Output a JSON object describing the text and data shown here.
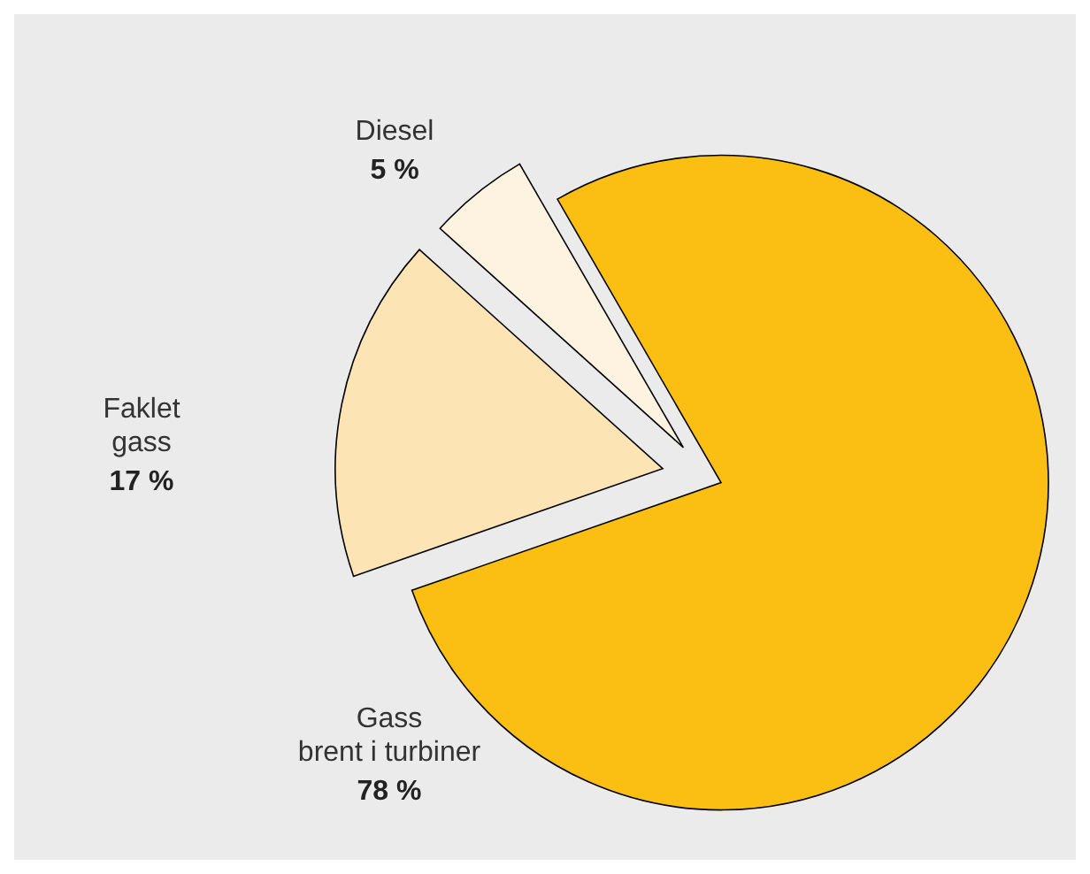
{
  "chart_data": {
    "type": "pie",
    "categories": [
      "Gass\nbrent i turbiner",
      "Faklet\ngass",
      "Diesel"
    ],
    "values": [
      78,
      17,
      5
    ],
    "colors": [
      "#fbbf13",
      "#fde4b5",
      "#fef3e0"
    ],
    "value_labels": [
      "78 %",
      "17 %",
      "5 %"
    ]
  }
}
